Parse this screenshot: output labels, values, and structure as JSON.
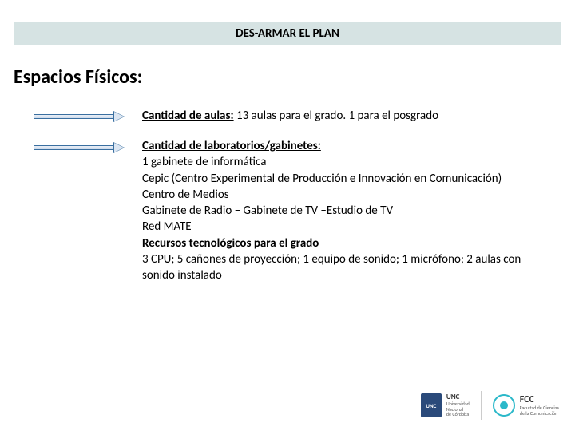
{
  "banner": {
    "title": "DES-ARMAR EL PLAN",
    "bg_color": "#d6e3e3"
  },
  "section_title": "Espacios Físicos:",
  "arrow_style": {
    "fill_gradient_top": "#e8eef6",
    "fill_gradient_bottom": "#cddbec",
    "border_color": "#3a6fa0"
  },
  "items": [
    {
      "heading_bold_underlined": "Cantidad  de aulas:",
      "inline_rest": " 13 aulas para el grado. 1 para el posgrado"
    },
    {
      "heading_bold_underlined": "Cantidad de laboratorios/gabinetes:",
      "lines": [
        "1 gabinete de informática",
        "Cepic (Centro Experimental de Producción e Innovación en Comunicación)",
        "Centro de Medios",
        "Gabinete de Radio – Gabinete de TV –Estudio de TV",
        "Red MATE"
      ],
      "sub_bold": "Recursos tecnológicos para el grado",
      "sub_lines": [
        "3 CPU; 5 cañones de proyección; 1 equipo de sonido; 1 micrófono; 2 aulas con sonido instalado"
      ]
    }
  ],
  "footer": {
    "unc": {
      "badge": "UNC",
      "line1": "Universidad",
      "line2": "Nacional",
      "line3": "de Córdoba"
    },
    "fcc": {
      "abbr": "FCC",
      "line1": "Facultad de Ciencias",
      "line2": "de la Comunicación"
    }
  },
  "colors": {
    "text": "#000000",
    "background": "#ffffff",
    "unc_badge": "#2a4a7a",
    "fcc_accent": "#2bb8c9"
  }
}
